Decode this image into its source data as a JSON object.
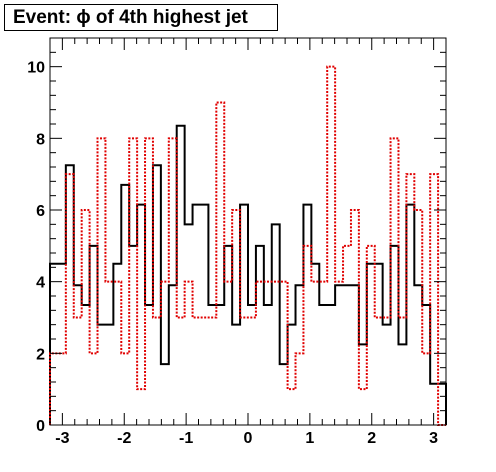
{
  "chart_data": {
    "type": "histogram",
    "title": "Event: ϕ of 4th highest jet",
    "xlabel": "",
    "ylabel": "",
    "xlim": [
      -3.2,
      3.2
    ],
    "ylim": [
      0,
      10.8
    ],
    "x_ticks": [
      -3,
      -2,
      -1,
      0,
      1,
      2,
      3
    ],
    "x_tick_labels": [
      "-3",
      "-2",
      "-1",
      "0",
      "1",
      "2",
      "3"
    ],
    "y_ticks": [
      0,
      2,
      4,
      6,
      8,
      10
    ],
    "y_tick_labels": [
      "0",
      "2",
      "4",
      "6",
      "8",
      "10"
    ],
    "grid": false,
    "legend": "none",
    "n_bins": 50,
    "series": [
      {
        "style": "solid",
        "color": "#000000",
        "values": [
          4.5,
          4.5,
          7.25,
          3.9,
          3.35,
          5.0,
          2.8,
          2.8,
          4.5,
          6.7,
          5.0,
          6.15,
          3.35,
          7.25,
          1.7,
          3.9,
          8.35,
          5.6,
          6.15,
          6.15,
          3.35,
          3.35,
          5.0,
          2.8,
          6.15,
          3.35,
          5.0,
          3.35,
          5.6,
          1.7,
          2.8,
          3.9,
          6.15,
          4.5,
          3.35,
          3.35,
          3.9,
          3.9,
          3.9,
          2.25,
          4.5,
          4.5,
          2.8,
          5.0,
          2.25,
          6.15,
          3.9,
          3.35,
          1.15,
          1.15
        ]
      },
      {
        "style": "dotted",
        "color": "#e00000",
        "values": [
          2.0,
          2.0,
          7.0,
          3.0,
          6.0,
          2.0,
          8.0,
          4.0,
          4.0,
          2.0,
          8.0,
          1.0,
          8.0,
          3.0,
          4.0,
          8.0,
          3.0,
          4.0,
          3.0,
          3.0,
          3.0,
          9.0,
          4.0,
          6.0,
          3.0,
          3.0,
          4.0,
          4.0,
          4.0,
          4.0,
          1.0,
          2.0,
          5.0,
          4.0,
          4.0,
          10.0,
          4.0,
          5.0,
          6.0,
          1.0,
          5.0,
          3.0,
          3.0,
          8.0,
          3.0,
          7.0,
          6.0,
          2.0,
          7.0,
          0.0
        ]
      }
    ]
  }
}
